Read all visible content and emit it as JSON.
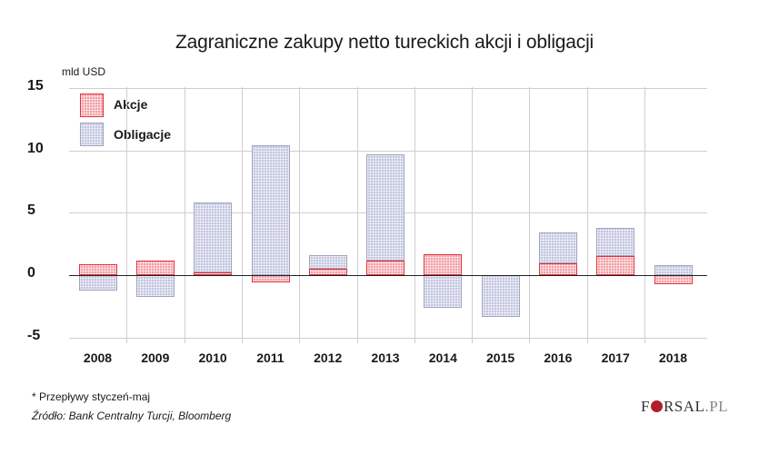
{
  "chart_data": {
    "type": "bar",
    "stacked": true,
    "title": "Zagraniczne zakupy netto tureckich akcji i obligacji",
    "ylabel": "mld USD",
    "xlabel": "",
    "categories": [
      "2008",
      "2009",
      "2010",
      "2011",
      "2012",
      "2013",
      "2014",
      "2015",
      "2016",
      "2017",
      "2018"
    ],
    "series": [
      {
        "name": "Akcje",
        "color": "#e0303c",
        "values": [
          0.85,
          1.15,
          0.2,
          -0.6,
          0.5,
          1.2,
          1.7,
          0.0,
          0.95,
          1.5,
          -0.75
        ]
      },
      {
        "name": "Obligacje",
        "color": "#9ea3c0",
        "values": [
          -1.2,
          -1.75,
          5.6,
          10.4,
          1.1,
          8.5,
          -2.6,
          -3.35,
          2.45,
          2.3,
          0.8
        ]
      }
    ],
    "ylim": [
      -5,
      15
    ],
    "yticks": [
      "15",
      "10",
      "5",
      "0",
      "-5"
    ],
    "grid": true,
    "legend_position": "top-left inside",
    "footnotes": [
      "* Przepływy styczeń-maj",
      "Źródło: Bank Centralny Turcji, Bloomberg"
    ]
  },
  "title": "Zagraniczne zakupy netto tureckich akcji i obligacji",
  "unit": "mld USD",
  "legend": {
    "akcje": "Akcje",
    "obligacje": "Obligacje"
  },
  "note": "* Przepływy styczeń-maj",
  "source": "Źródło: Bank Centralny Turcji, Bloomberg",
  "logo": {
    "left": "F",
    "mid": "RSAL",
    "right": ".PL"
  }
}
